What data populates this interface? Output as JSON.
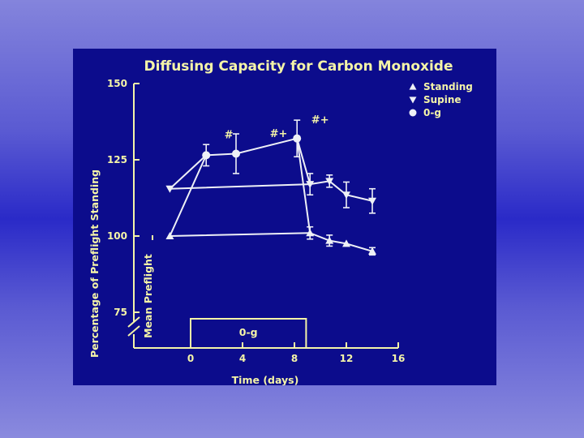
{
  "chart_data": {
    "type": "line",
    "title": "Diffusing Capacity for Carbon Monoxide",
    "xlabel": "Time (days)",
    "ylabel": "Percentage of Preflight Standing",
    "ylabel_secondary": "Mean Preflight",
    "xlim": [
      -2,
      16
    ],
    "ylim": [
      75,
      150
    ],
    "x_ticks": [
      "0",
      "4",
      "8",
      "12",
      "16"
    ],
    "y_ticks": [
      "75",
      "100",
      "125",
      "150"
    ],
    "legend": {
      "position": "top-right"
    },
    "series": [
      {
        "name": "Standing",
        "marker": "triangle-up",
        "x": [
          -1.6,
          9.2,
          10.7,
          12.0,
          14.0
        ],
        "y": [
          100,
          101,
          98.5,
          97.5,
          95
        ],
        "err": [
          0,
          2,
          1.8,
          0,
          1.2
        ]
      },
      {
        "name": "Supine",
        "marker": "triangle-down",
        "x": [
          -1.6,
          9.2,
          10.7,
          12.0,
          14.0
        ],
        "y": [
          115.5,
          117,
          118,
          113.5,
          111.5
        ],
        "err": [
          0,
          3.5,
          2,
          4.2,
          4
        ]
      },
      {
        "name": "0-g",
        "marker": "circle",
        "x": [
          1.2,
          3.5,
          8.2
        ],
        "y": [
          126.5,
          127,
          132
        ],
        "err": [
          3.5,
          6.5,
          6
        ]
      }
    ],
    "shared_segments": [
      {
        "from": {
          "x": -1.6,
          "y": 100
        },
        "to": {
          "x": 1.2,
          "y": 126.5
        }
      },
      {
        "from": {
          "x": -1.6,
          "y": 115.5
        },
        "to": {
          "x": 1.2,
          "y": 126.5
        }
      },
      {
        "from": {
          "x": 8.2,
          "y": 132
        },
        "to": {
          "x": 9.2,
          "y": 101
        }
      },
      {
        "from": {
          "x": 8.2,
          "y": 132
        },
        "to": {
          "x": 9.2,
          "y": 117
        }
      }
    ],
    "annotations": [
      {
        "text": "#",
        "x": 2.6,
        "y": 132
      },
      {
        "text": "#+",
        "x": 6.1,
        "y": 132.5
      },
      {
        "text": "#+",
        "x": 9.3,
        "y": 137
      }
    ],
    "period_box": {
      "label": "0-g",
      "x_start": 0,
      "x_end": 8.9
    }
  }
}
